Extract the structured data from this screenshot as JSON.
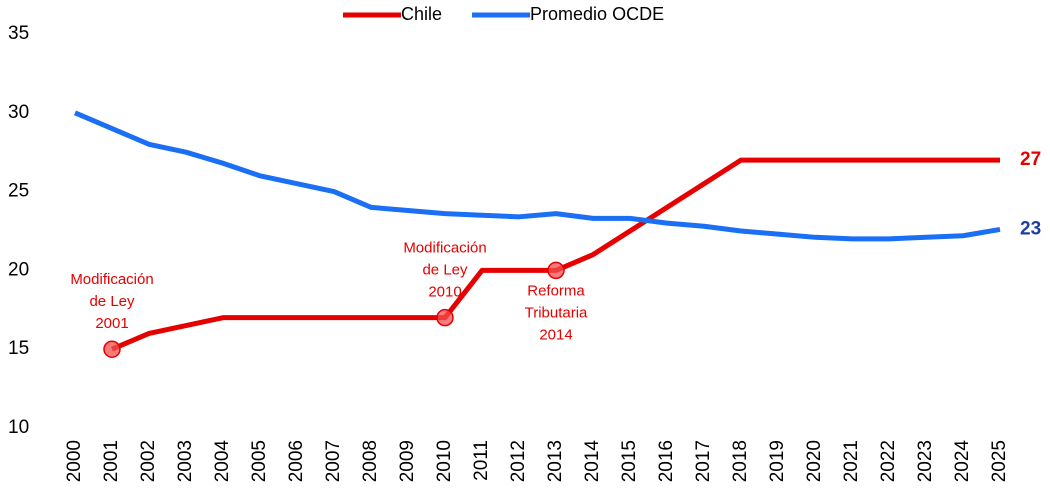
{
  "chart_data": {
    "type": "line",
    "categories": [
      "2000",
      "2001",
      "2002",
      "2003",
      "2004",
      "2005",
      "2006",
      "2007",
      "2008",
      "2009",
      "2010",
      "2011",
      "2012",
      "2013",
      "2014",
      "2015",
      "2016",
      "2017",
      "2018",
      "2019",
      "2020",
      "2021",
      "2022",
      "2023",
      "2024",
      "2025"
    ],
    "series": [
      {
        "name": "Chile",
        "color": "#e60000",
        "label_color": "#e60000",
        "values": [
          null,
          15,
          16,
          16.5,
          17,
          17,
          17,
          17,
          17,
          17,
          17,
          20,
          20,
          20,
          21,
          22.5,
          24,
          25.5,
          27,
          27,
          27,
          27,
          27,
          27,
          27,
          27
        ],
        "value_labels": [
          null,
          null,
          null,
          null,
          null,
          null,
          null,
          null,
          null,
          null,
          null,
          null,
          null,
          null,
          null,
          null,
          null,
          null,
          null,
          null,
          null,
          null,
          null,
          null,
          null,
          "27"
        ]
      },
      {
        "name": "Promedio OCDE",
        "color": "#1a6ff5",
        "label_color": "#1f3f9f",
        "values": [
          30,
          29,
          28,
          27.5,
          26.8,
          26,
          25.5,
          25,
          24,
          23.8,
          23.6,
          23.5,
          23.4,
          23.6,
          23.3,
          23.3,
          23,
          22.8,
          22.5,
          22.3,
          22.1,
          22,
          22,
          22.1,
          22.2,
          22.6
        ],
        "value_labels": [
          null,
          null,
          null,
          null,
          null,
          null,
          null,
          null,
          null,
          null,
          null,
          null,
          null,
          null,
          null,
          null,
          null,
          null,
          null,
          null,
          null,
          null,
          null,
          null,
          null,
          "23"
        ]
      }
    ],
    "annotations": [
      {
        "lines": [
          "Modificación",
          "de Ley",
          "2001"
        ],
        "index": 1,
        "position": "above"
      },
      {
        "lines": [
          "Modificación",
          "de Ley",
          "2010"
        ],
        "index": 10,
        "position": "above"
      },
      {
        "lines": [
          "Reforma",
          "Tributaria",
          "2014"
        ],
        "index": 13,
        "position": "below"
      }
    ],
    "ylim": [
      10,
      35
    ],
    "yticks": [
      10,
      15,
      20,
      25,
      30,
      35
    ],
    "legend": "top"
  }
}
